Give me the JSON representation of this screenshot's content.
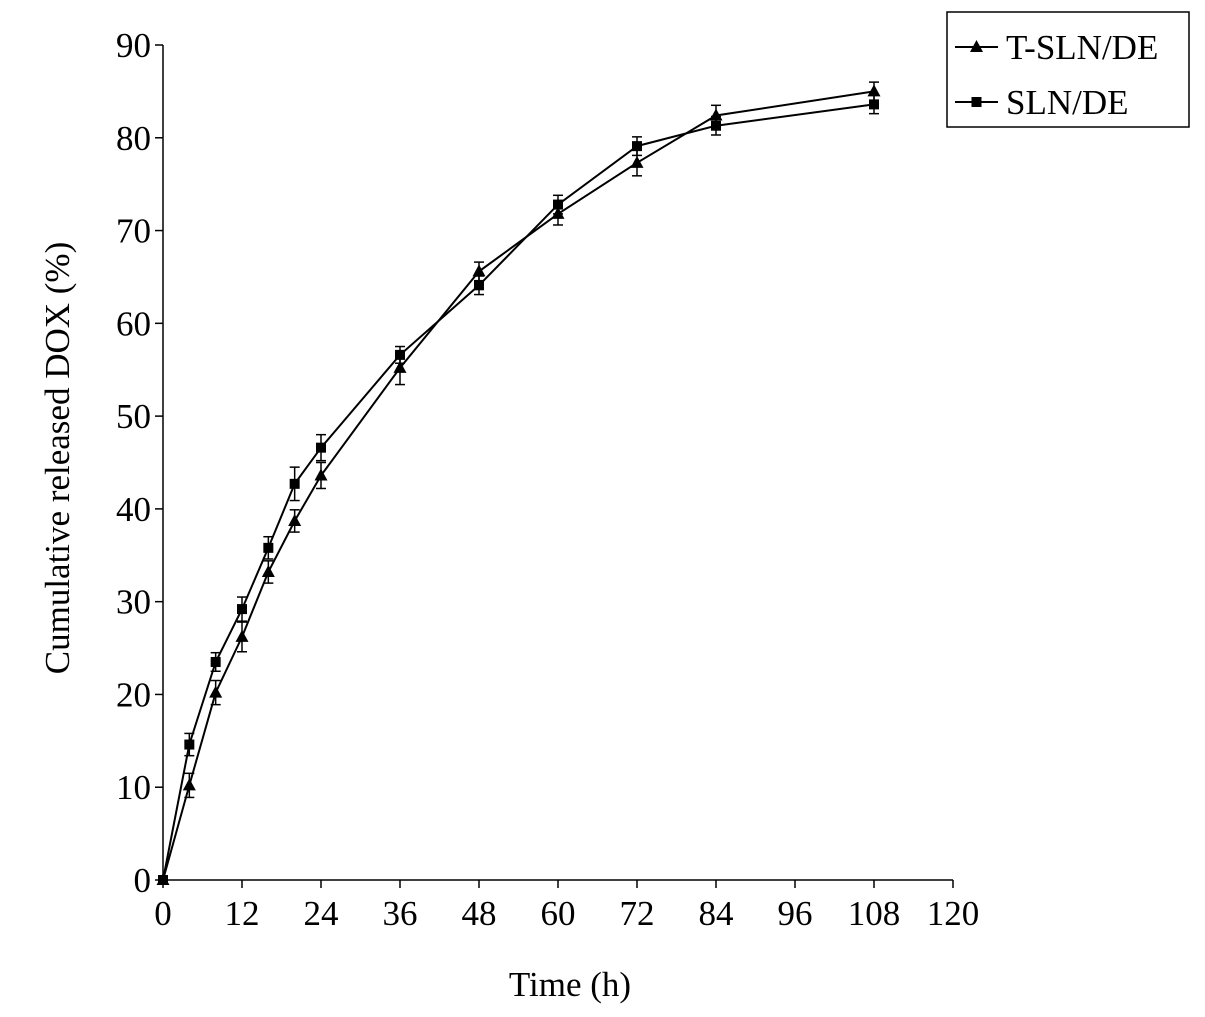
{
  "chart_data": {
    "type": "line",
    "title": "",
    "xlabel": "Time (h)",
    "ylabel": "Cumulative released DOX (%)",
    "xlim": [
      0,
      120
    ],
    "ylim": [
      0,
      90
    ],
    "x_ticks": [
      "0",
      "12",
      "24",
      "36",
      "48",
      "60",
      "72",
      "84",
      "96",
      "108",
      "120"
    ],
    "y_ticks": [
      "0",
      "10",
      "20",
      "30",
      "40",
      "50",
      "60",
      "70",
      "80",
      "90"
    ],
    "grid": false,
    "legend_position": "top-right",
    "series": [
      {
        "name": "T-SLN/DE",
        "marker": "triangle",
        "x": [
          0,
          4,
          8,
          12,
          16,
          20,
          24,
          36,
          48,
          60,
          72,
          84,
          108
        ],
        "y": [
          0,
          10.2,
          20.2,
          26.2,
          33.2,
          38.7,
          43.6,
          55.2,
          65.6,
          71.8,
          77.3,
          82.4,
          85.0
        ],
        "error": [
          0,
          1.3,
          1.3,
          1.6,
          1.2,
          1.2,
          1.4,
          1.8,
          1.0,
          1.2,
          1.4,
          1.1,
          1.0
        ]
      },
      {
        "name": "SLN/DE",
        "marker": "square",
        "x": [
          0,
          4,
          8,
          12,
          16,
          20,
          24,
          36,
          48,
          60,
          72,
          84,
          108
        ],
        "y": [
          0,
          14.6,
          23.5,
          29.2,
          35.8,
          42.7,
          46.6,
          56.6,
          64.1,
          72.8,
          79.1,
          81.3,
          83.6
        ],
        "error": [
          0,
          1.2,
          1.0,
          1.3,
          1.2,
          1.8,
          1.4,
          0.9,
          1.0,
          1.0,
          1.0,
          1.0,
          1.0
        ]
      }
    ]
  }
}
